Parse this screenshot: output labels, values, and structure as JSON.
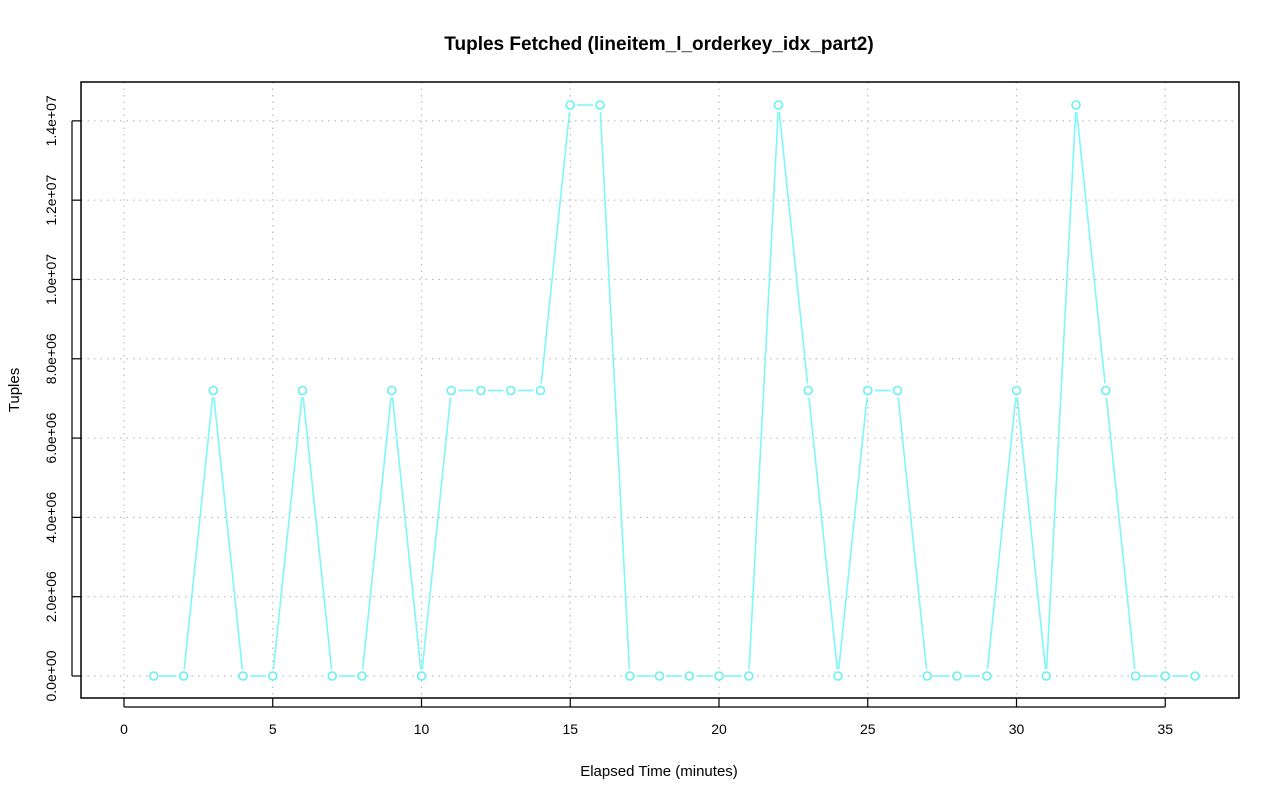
{
  "chart_data": {
    "type": "line",
    "title": "Tuples Fetched (lineitem_l_orderkey_idx_part2)",
    "xlabel": "Elapsed Time (minutes)",
    "ylabel": "Tuples",
    "xlim": [
      0,
      37
    ],
    "ylim": [
      0,
      14400000
    ],
    "x_ticks": [
      0,
      5,
      10,
      15,
      20,
      25,
      30,
      35
    ],
    "x_tick_labels": [
      "0",
      "5",
      "10",
      "15",
      "20",
      "25",
      "30",
      "35"
    ],
    "y_ticks": [
      0,
      2000000,
      4000000,
      6000000,
      8000000,
      10000000,
      12000000,
      14000000
    ],
    "y_tick_labels": [
      "0.0e+00",
      "2.0e+06",
      "4.0e+06",
      "6.0e+06",
      "8.0e+06",
      "1.0e+07",
      "1.2e+07",
      "1.4e+07"
    ],
    "grid": true,
    "legend": "none",
    "series": [
      {
        "color": "#66f2f2",
        "marker": "open-circle",
        "x": [
          1,
          2,
          3,
          4,
          5,
          6,
          7,
          8,
          9,
          10,
          11,
          12,
          13,
          14,
          15,
          16,
          17,
          18,
          19,
          20,
          21,
          22,
          23,
          24,
          25,
          26,
          27,
          28,
          29,
          30,
          31,
          32,
          33,
          34,
          35,
          36
        ],
        "y": [
          0,
          0,
          7200000,
          0,
          0,
          7200000,
          0,
          0,
          7200000,
          0,
          7200000,
          7200000,
          7200000,
          7200000,
          14400000,
          14400000,
          0,
          0,
          0,
          0,
          0,
          14400000,
          7200000,
          0,
          7200000,
          7200000,
          0,
          0,
          0,
          7200000,
          0,
          14400000,
          7200000,
          0,
          0,
          0
        ]
      }
    ]
  }
}
